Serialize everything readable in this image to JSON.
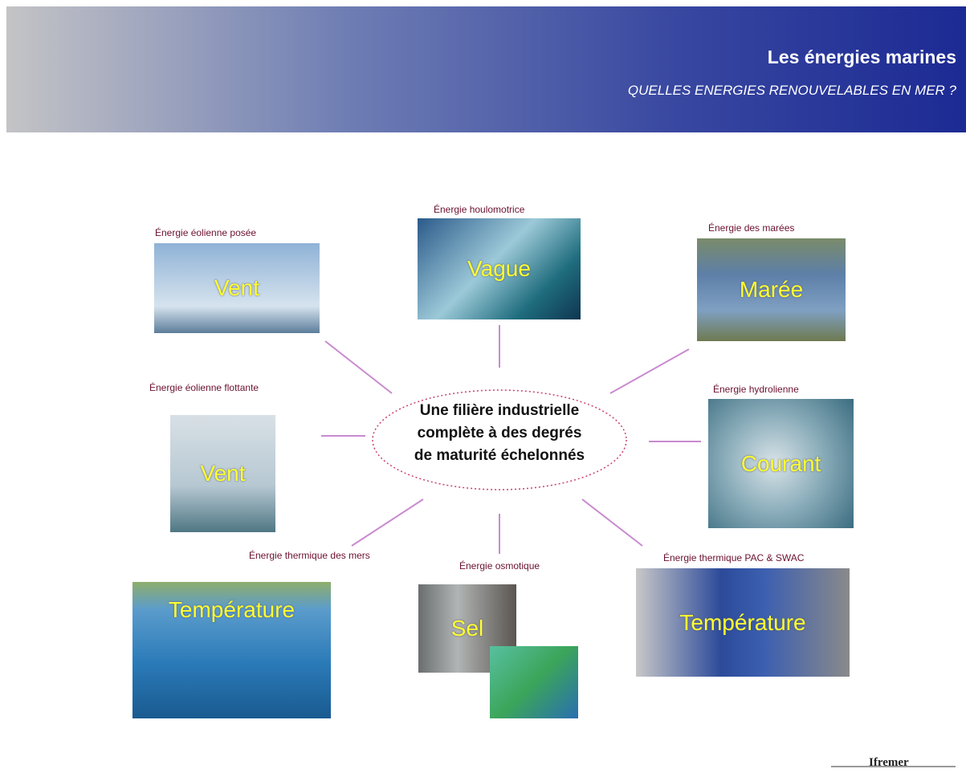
{
  "header": {
    "title": "Les énergies marines",
    "subtitle": "QUELLES ENERGIES RENOUVELABLES EN MER ?"
  },
  "center": {
    "lines": [
      "Une filière industrielle",
      "complète à des degrés",
      "de maturité échelonnés"
    ]
  },
  "nodes": [
    {
      "label": "Énergie éolienne posée",
      "image_text": "Vent"
    },
    {
      "label": "Énergie houlomotrice",
      "image_text": "Vague"
    },
    {
      "label": "Énergie des marées",
      "image_text": "Marée"
    },
    {
      "label": "Énergie éolienne flottante",
      "image_text": "Vent"
    },
    {
      "label": "Énergie hydrolienne",
      "image_text": "Courant"
    },
    {
      "label": "Énergie thermique des mers",
      "image_text": "Température"
    },
    {
      "label": "Énergie osmotique",
      "image_text": "Sel"
    },
    {
      "label": "Énergie thermique PAC & SWAC",
      "image_text": "Température"
    }
  ],
  "logo": "Ifremer"
}
